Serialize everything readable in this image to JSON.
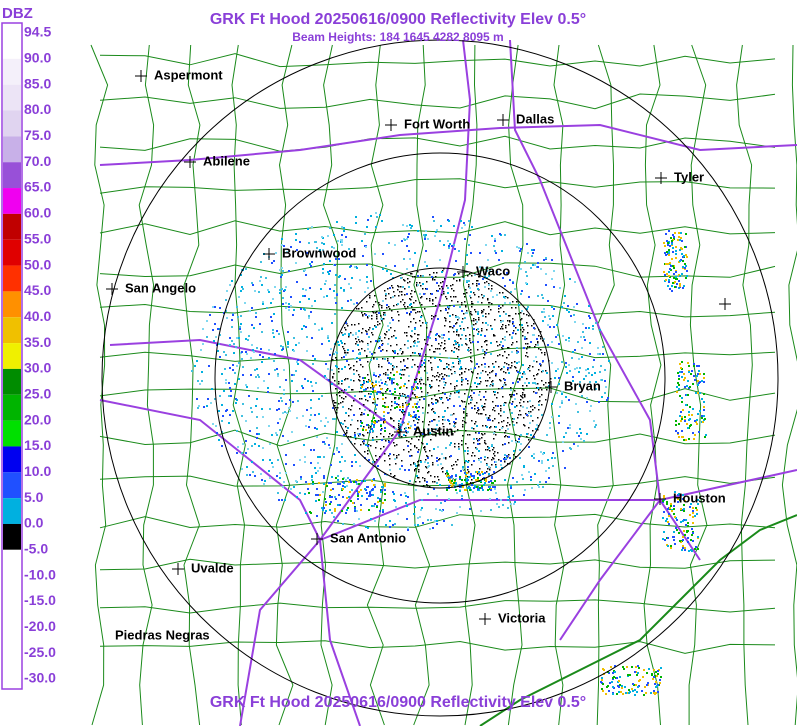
{
  "header": {
    "title": "GRK Ft Hood 20250616/0900 Reflectivity Elev 0.5°",
    "subtitle": "Beam Heights: 184 1645 4282 8095 m"
  },
  "footer": {
    "title": "GRK Ft Hood 20250616/0900 Reflectivity Elev 0.5°"
  },
  "legend": {
    "unit": "DBZ",
    "entries": [
      {
        "label": "94.5",
        "color": "#ffffff"
      },
      {
        "label": "90.0",
        "color": "#f4f0fa"
      },
      {
        "label": "85.0",
        "color": "#ece4f6"
      },
      {
        "label": "80.0",
        "color": "#e0d4f0"
      },
      {
        "label": "75.0",
        "color": "#c8b0e8"
      },
      {
        "label": "70.0",
        "color": "#9850d8"
      },
      {
        "label": "65.0",
        "color": "#f000f0"
      },
      {
        "label": "60.0",
        "color": "#c00000"
      },
      {
        "label": "55.0",
        "color": "#e00000"
      },
      {
        "label": "50.0",
        "color": "#ff3000"
      },
      {
        "label": "45.0",
        "color": "#ff9000"
      },
      {
        "label": "40.0",
        "color": "#f0c000"
      },
      {
        "label": "35.0",
        "color": "#f0f000"
      },
      {
        "label": "30.0",
        "color": "#008c00"
      },
      {
        "label": "25.0",
        "color": "#00b400"
      },
      {
        "label": "20.0",
        "color": "#00e000"
      },
      {
        "label": "15.0",
        "color": "#0000f0"
      },
      {
        "label": "10.0",
        "color": "#2050ff"
      },
      {
        "label": "5.0",
        "color": "#00b0e0"
      },
      {
        "label": "0.0",
        "color": "#000000"
      },
      {
        "label": "-5.0",
        "color": "#ffffff"
      },
      {
        "label": "-10.0",
        "color": "#ffffff"
      },
      {
        "label": "-15.0",
        "color": "#ffffff"
      },
      {
        "label": "-20.0",
        "color": "#ffffff"
      },
      {
        "label": "-25.0",
        "color": "#ffffff"
      },
      {
        "label": "-30.0",
        "color": "#ffffff"
      }
    ]
  },
  "cities": [
    "Aspermont",
    "Fort Worth",
    "Dallas",
    "Abilene",
    "Tyler",
    "Brownwood",
    "Waco",
    "San Angelo",
    "Bryan",
    "Austin",
    "Houston",
    "San Antonio",
    "Uvalde",
    "Victoria",
    "Piedras Negras"
  ]
}
